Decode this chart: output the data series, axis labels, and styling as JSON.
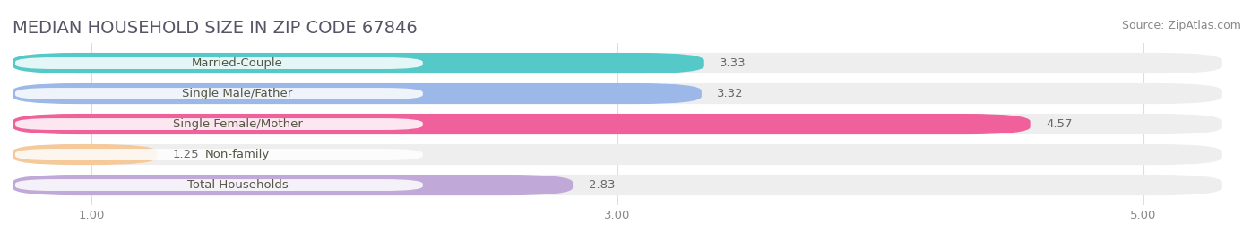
{
  "title": "MEDIAN HOUSEHOLD SIZE IN ZIP CODE 67846",
  "source": "Source: ZipAtlas.com",
  "categories": [
    "Married-Couple",
    "Single Male/Father",
    "Single Female/Mother",
    "Non-family",
    "Total Households"
  ],
  "values": [
    3.33,
    3.32,
    4.57,
    1.25,
    2.83
  ],
  "bar_colors": [
    "#55C8C8",
    "#9BB8E8",
    "#F0609A",
    "#F5C99A",
    "#C0A8D8"
  ],
  "xlim_min": 0.7,
  "xlim_max": 5.3,
  "data_min": 1.0,
  "data_max": 5.0,
  "xticks": [
    1.0,
    3.0,
    5.0
  ],
  "xtick_labels": [
    "1.00",
    "3.00",
    "5.00"
  ],
  "background_color": "#ffffff",
  "bar_bg_color": "#eeeeee",
  "title_fontsize": 14,
  "label_fontsize": 9.5,
  "value_fontsize": 9.5,
  "source_fontsize": 9,
  "title_color": "#555566",
  "source_color": "#888888",
  "label_color": "#555544",
  "value_color": "#666666"
}
